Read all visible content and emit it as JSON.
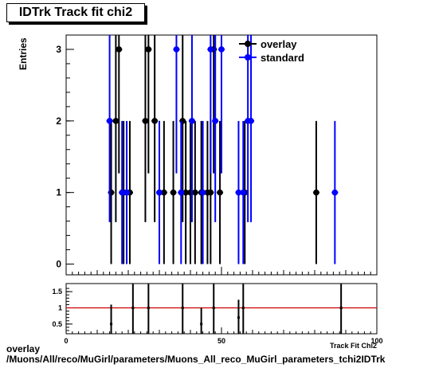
{
  "title": "IDTrk Track fit chi2",
  "footer": {
    "line1": "overlay",
    "line2": "/Muons/All/reco/MuGirl/parameters/Muons_All_reco_MuGirl_parameters_tchi2IDTrk"
  },
  "colors": {
    "overlay": "#000000",
    "standard": "#0000ff",
    "ratio_line": "#cc0000"
  },
  "chart_data": [
    {
      "type": "scatter",
      "ylabel": "Entries",
      "xlabel": "Track Fit Chi2",
      "xlim": [
        0,
        100
      ],
      "ylim": [
        -0.15,
        3.2
      ],
      "y_ticks": [
        0,
        1,
        2,
        3
      ],
      "legend": {
        "placement": "top-right",
        "entries": [
          "overlay",
          "standard"
        ]
      },
      "series": [
        {
          "name": "overlay",
          "points": [
            {
              "x": 14.5,
              "y": 1
            },
            {
              "x": 16.0,
              "y": 2
            },
            {
              "x": 17.0,
              "y": 3
            },
            {
              "x": 18.5,
              "y": 1
            },
            {
              "x": 20.5,
              "y": 1
            },
            {
              "x": 25.5,
              "y": 2
            },
            {
              "x": 26.5,
              "y": 3
            },
            {
              "x": 28.5,
              "y": 2
            },
            {
              "x": 30.0,
              "y": 1
            },
            {
              "x": 31.5,
              "y": 1
            },
            {
              "x": 34.5,
              "y": 1
            },
            {
              "x": 37.5,
              "y": 2
            },
            {
              "x": 38.5,
              "y": 1
            },
            {
              "x": 40.0,
              "y": 1
            },
            {
              "x": 41.5,
              "y": 1
            },
            {
              "x": 43.5,
              "y": 1
            },
            {
              "x": 45.5,
              "y": 1
            },
            {
              "x": 46.5,
              "y": 1
            },
            {
              "x": 47.5,
              "y": 3
            },
            {
              "x": 49.5,
              "y": 1
            },
            {
              "x": 57.5,
              "y": 1
            },
            {
              "x": 80.5,
              "y": 1
            }
          ]
        },
        {
          "name": "standard",
          "points": [
            {
              "x": 14.0,
              "y": 2
            },
            {
              "x": 18.0,
              "y": 1
            },
            {
              "x": 19.5,
              "y": 1
            },
            {
              "x": 30.0,
              "y": 1
            },
            {
              "x": 35.5,
              "y": 3
            },
            {
              "x": 37.0,
              "y": 1
            },
            {
              "x": 40.5,
              "y": 2
            },
            {
              "x": 44.0,
              "y": 1
            },
            {
              "x": 46.5,
              "y": 3
            },
            {
              "x": 48.0,
              "y": 2
            },
            {
              "x": 50.0,
              "y": 3
            },
            {
              "x": 55.5,
              "y": 1
            },
            {
              "x": 57.0,
              "y": 1
            },
            {
              "x": 58.5,
              "y": 2
            },
            {
              "x": 59.5,
              "y": 2
            },
            {
              "x": 86.5,
              "y": 1
            }
          ]
        }
      ]
    },
    {
      "type": "scatter",
      "xlim": [
        0,
        100
      ],
      "ylim": [
        0.2,
        1.75
      ],
      "x_ticks": [
        0,
        50,
        100
      ],
      "y_ticks": [
        0.5,
        1,
        1.5
      ],
      "reference_line": 1,
      "points": [
        {
          "x": 14.5,
          "y": 0.5,
          "err": 0.6
        },
        {
          "x": 21.5,
          "y": 1.0,
          "err": 1.4
        },
        {
          "x": 26.5,
          "y": 1.0,
          "err": 1.2
        },
        {
          "x": 37.5,
          "y": 1.0,
          "err": 1.0
        },
        {
          "x": 43.5,
          "y": 0.5,
          "err": 0.5
        },
        {
          "x": 47.5,
          "y": 1.0,
          "err": 1.0
        },
        {
          "x": 55.5,
          "y": 0.7,
          "err": 0.55
        },
        {
          "x": 57.0,
          "y": 1.0,
          "err": 0.9
        },
        {
          "x": 88.5,
          "y": 1.0,
          "err": 1.0
        }
      ]
    }
  ]
}
